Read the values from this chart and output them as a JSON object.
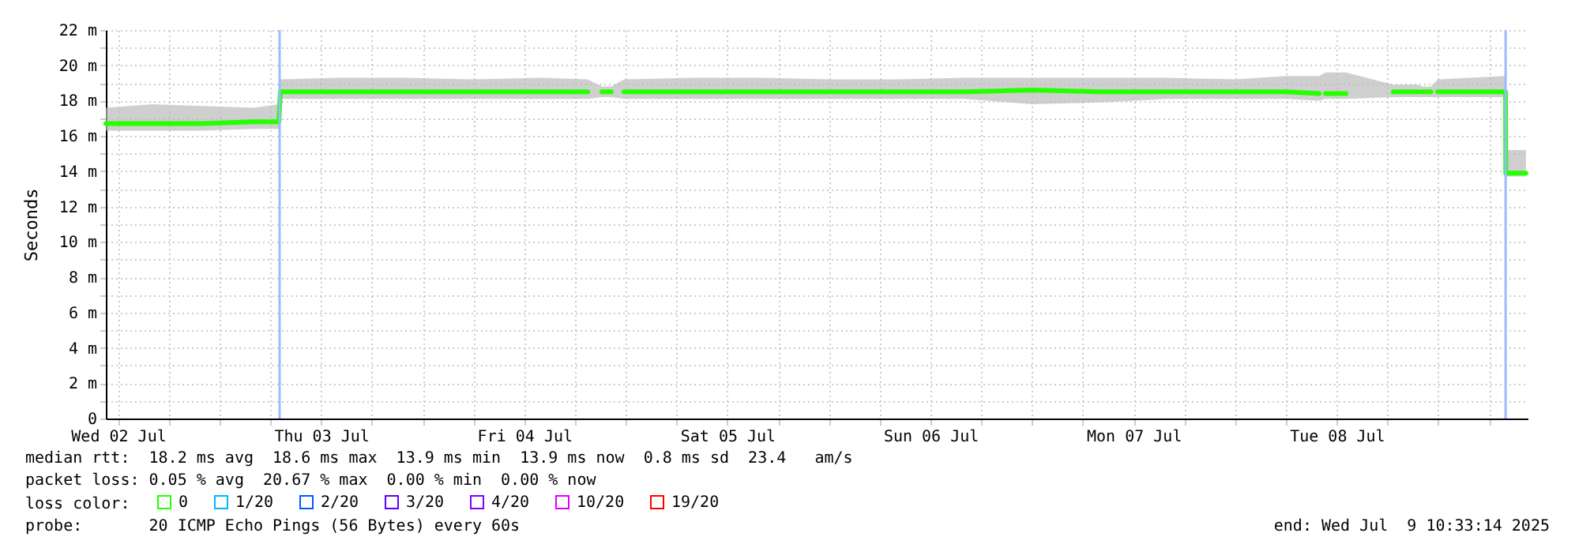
{
  "chart_data": {
    "type": "line",
    "ylabel": "Seconds",
    "legend_title": "loss color:",
    "legend": "bottom",
    "grid": true,
    "xlim": [
      "2025-07-02T10:33",
      "2025-07-09T10:33"
    ],
    "ylim": [
      0,
      22
    ],
    "xticks": [
      {
        "value": "2025-07-02T12:00",
        "label": "Wed 02 Jul"
      },
      {
        "value": "2025-07-02T18:00",
        "label": null
      },
      {
        "value": "2025-07-03T00:00",
        "label": null
      },
      {
        "value": "2025-07-03T06:00",
        "label": null
      },
      {
        "value": "2025-07-03T12:00",
        "label": "Thu 03 Jul"
      },
      {
        "value": "2025-07-03T18:00",
        "label": null
      },
      {
        "value": "2025-07-04T00:00",
        "label": null
      },
      {
        "value": "2025-07-04T06:00",
        "label": null
      },
      {
        "value": "2025-07-04T12:00",
        "label": "Fri 04 Jul"
      },
      {
        "value": "2025-07-04T18:00",
        "label": null
      },
      {
        "value": "2025-07-05T00:00",
        "label": null
      },
      {
        "value": "2025-07-05T06:00",
        "label": null
      },
      {
        "value": "2025-07-05T12:00",
        "label": "Sat 05 Jul"
      },
      {
        "value": "2025-07-05T18:00",
        "label": null
      },
      {
        "value": "2025-07-06T00:00",
        "label": null
      },
      {
        "value": "2025-07-06T06:00",
        "label": null
      },
      {
        "value": "2025-07-06T12:00",
        "label": "Sun 06 Jul"
      },
      {
        "value": "2025-07-06T18:00",
        "label": null
      },
      {
        "value": "2025-07-07T00:00",
        "label": null
      },
      {
        "value": "2025-07-07T06:00",
        "label": null
      },
      {
        "value": "2025-07-07T12:00",
        "label": "Mon 07 Jul"
      },
      {
        "value": "2025-07-07T18:00",
        "label": null
      },
      {
        "value": "2025-07-08T00:00",
        "label": null
      },
      {
        "value": "2025-07-08T06:00",
        "label": null
      },
      {
        "value": "2025-07-08T12:00",
        "label": "Tue 08 Jul"
      },
      {
        "value": "2025-07-08T18:00",
        "label": null
      },
      {
        "value": "2025-07-09T00:00",
        "label": null
      },
      {
        "value": "2025-07-09T06:00",
        "label": null
      }
    ],
    "yticks": [
      0,
      {
        "value": 1,
        "label": null
      },
      {
        "value": 2,
        "label": "2 m"
      },
      {
        "value": 3,
        "label": null
      },
      {
        "value": 4,
        "label": "4 m"
      },
      {
        "value": 5,
        "label": null
      },
      {
        "value": 6,
        "label": "6 m"
      },
      {
        "value": 7,
        "label": null
      },
      {
        "value": 8,
        "label": "8 m"
      },
      {
        "value": 9,
        "label": null
      },
      {
        "value": 10,
        "label": "10 m"
      },
      {
        "value": 11,
        "label": null
      },
      {
        "value": 12,
        "label": "12 m"
      },
      {
        "value": 13,
        "label": null
      },
      {
        "value": 14,
        "label": "14 m"
      },
      {
        "value": 15,
        "label": null
      },
      {
        "value": 16,
        "label": "16 m"
      },
      {
        "value": 17,
        "label": null
      },
      {
        "value": 18,
        "label": "18 m"
      },
      {
        "value": 19,
        "label": null
      },
      {
        "value": 20,
        "label": "20 m"
      },
      {
        "value": 21,
        "label": null
      },
      {
        "value": 22,
        "label": "22 m"
      }
    ],
    "x": [
      "2025-07-02T10:33",
      "2025-07-02T16:00",
      "2025-07-02T22:00",
      "2025-07-03T04:00",
      "2025-07-03T07:00",
      "2025-07-03T07:10",
      "2025-07-03T14:00",
      "2025-07-03T22:00",
      "2025-07-04T06:00",
      "2025-07-04T14:00",
      "2025-07-04T19:29",
      "2025-07-04T20:20",
      "2025-07-04T21:10",
      "2025-07-04T22:17",
      "2025-07-04T23:00",
      "2025-07-04T23:47",
      "2025-07-05T08:00",
      "2025-07-05T16:00",
      "2025-07-06T00:00",
      "2025-07-06T08:00",
      "2025-07-06T16:00",
      "2025-07-07T00:00",
      "2025-07-07T08:00",
      "2025-07-07T16:00",
      "2025-07-08T00:00",
      "2025-07-08T06:00",
      "2025-07-08T09:55",
      "2025-07-08T10:20",
      "2025-07-08T10:40",
      "2025-07-08T13:05",
      "2025-07-08T15:00",
      "2025-07-08T18:41",
      "2025-07-08T21:40",
      "2025-07-08T21:50",
      "2025-07-08T22:00",
      "2025-07-08T23:08",
      "2025-07-08T23:30",
      "2025-07-08T23:55",
      "2025-07-09T07:57",
      "2025-07-09T07:58",
      "2025-07-09T10:21"
    ],
    "series": [
      {
        "name": "0",
        "color": "#26ff00",
        "values": [
          16.7,
          16.7,
          16.7,
          16.8,
          16.8,
          18.5,
          18.5,
          18.5,
          18.5,
          18.5,
          18.5,
          null,
          18.5,
          18.5,
          null,
          18.5,
          18.5,
          18.5,
          18.5,
          18.5,
          18.5,
          18.6,
          18.5,
          18.5,
          18.5,
          18.5,
          18.4,
          null,
          18.4,
          18.4,
          null,
          18.5,
          18.5,
          null,
          18.5,
          18.5,
          null,
          18.5,
          18.5,
          13.9,
          13.9
        ],
        "lower": [
          16.3,
          16.3,
          16.3,
          16.4,
          16.4,
          18.1,
          18.1,
          18.1,
          18.1,
          18.1,
          18.1,
          null,
          18.2,
          18.2,
          null,
          18.1,
          18.1,
          18.1,
          18.1,
          18.1,
          18.1,
          17.8,
          17.9,
          18.1,
          18.1,
          18.1,
          18.0,
          null,
          18.1,
          18.1,
          null,
          18.2,
          18.2,
          null,
          18.2,
          18.2,
          null,
          18.2,
          18.2,
          13.7,
          13.7
        ],
        "upper": [
          17.6,
          17.8,
          17.7,
          17.6,
          17.8,
          19.2,
          19.3,
          19.3,
          19.2,
          19.3,
          19.2,
          null,
          18.8,
          18.8,
          null,
          19.2,
          19.3,
          19.3,
          19.2,
          19.2,
          19.3,
          19.3,
          19.3,
          19.3,
          19.2,
          19.4,
          19.4,
          null,
          19.6,
          19.6,
          null,
          18.9,
          18.9,
          null,
          18.8,
          18.8,
          null,
          19.2,
          19.4,
          15.2,
          15.2
        ]
      },
      {
        "name": "1/20",
        "color": "#00b8ff",
        "values": [
          null,
          null,
          null,
          null,
          null,
          null,
          null,
          null,
          null,
          null,
          null,
          null,
          null,
          null,
          null,
          null,
          null,
          null,
          null,
          null,
          null,
          null,
          null,
          null,
          null,
          null,
          null,
          null,
          null,
          null,
          null,
          null,
          null,
          null,
          null,
          null,
          null,
          null,
          null,
          null,
          null
        ]
      },
      {
        "name": "2/20",
        "color": "#0059ff",
        "values": [
          null,
          null,
          null,
          null,
          null,
          null,
          null,
          null,
          null,
          null,
          null,
          null,
          null,
          null,
          null,
          null,
          null,
          null,
          null,
          null,
          null,
          null,
          null,
          null,
          null,
          null,
          null,
          null,
          null,
          null,
          null,
          null,
          null,
          null,
          null,
          null,
          null,
          null,
          null,
          null,
          null
        ]
      },
      {
        "name": "3/20",
        "color": "#5e00ff",
        "values": [
          null,
          null,
          null,
          null,
          null,
          null,
          null,
          null,
          null,
          null,
          null,
          null,
          null,
          null,
          null,
          null,
          null,
          null,
          null,
          null,
          null,
          null,
          null,
          null,
          null,
          null,
          null,
          null,
          null,
          null,
          null,
          null,
          null,
          null,
          null,
          null,
          null,
          null,
          null,
          null,
          null
        ]
      },
      {
        "name": "4/20",
        "color": "#7e00ff",
        "values": [
          null,
          null,
          null,
          null,
          null,
          null,
          null,
          null,
          null,
          null,
          null,
          null,
          null,
          null,
          null,
          null,
          null,
          null,
          null,
          null,
          null,
          null,
          null,
          null,
          null,
          null,
          null,
          null,
          null,
          null,
          null,
          null,
          null,
          null,
          null,
          null,
          null,
          null,
          null,
          null,
          null
        ]
      },
      {
        "name": "10/20",
        "color": "#dd00ff",
        "values": [
          null,
          null,
          null,
          null,
          null,
          null,
          null,
          null,
          null,
          null,
          null,
          null,
          null,
          null,
          null,
          null,
          null,
          null,
          null,
          null,
          null,
          null,
          null,
          null,
          null,
          null,
          null,
          null,
          null,
          null,
          null,
          null,
          null,
          null,
          null,
          null,
          null,
          null,
          null,
          null,
          null
        ]
      },
      {
        "name": "19/20",
        "color": "#ff0000",
        "values": [
          null,
          null,
          null,
          null,
          null,
          null,
          null,
          null,
          null,
          null,
          null,
          null,
          null,
          null,
          null,
          null,
          null,
          null,
          null,
          null,
          null,
          null,
          null,
          null,
          null,
          null,
          null,
          null,
          null,
          null,
          null,
          null,
          null,
          null,
          null,
          null,
          null,
          null,
          null,
          null,
          null
        ]
      }
    ],
    "ref_lines": [
      {
        "axis": "x",
        "value": "2025-07-03T07:05",
        "color": "#99bbff"
      },
      {
        "axis": "x",
        "value": "2025-07-09T07:57",
        "color": "#99bbff"
      }
    ],
    "annotations": [
      "median rtt:  18.2 ms avg  18.6 ms max  13.9 ms min  13.9 ms now  0.8 ms sd  23.4   am/s",
      "packet loss: 0.05 % avg  20.67 % max  0.00 % min  0.00 % now",
      "probe:       20 ICMP Echo Pings (56 Bytes) every 60s",
      "end: Wed Jul  9 10:33:14 2025"
    ]
  }
}
